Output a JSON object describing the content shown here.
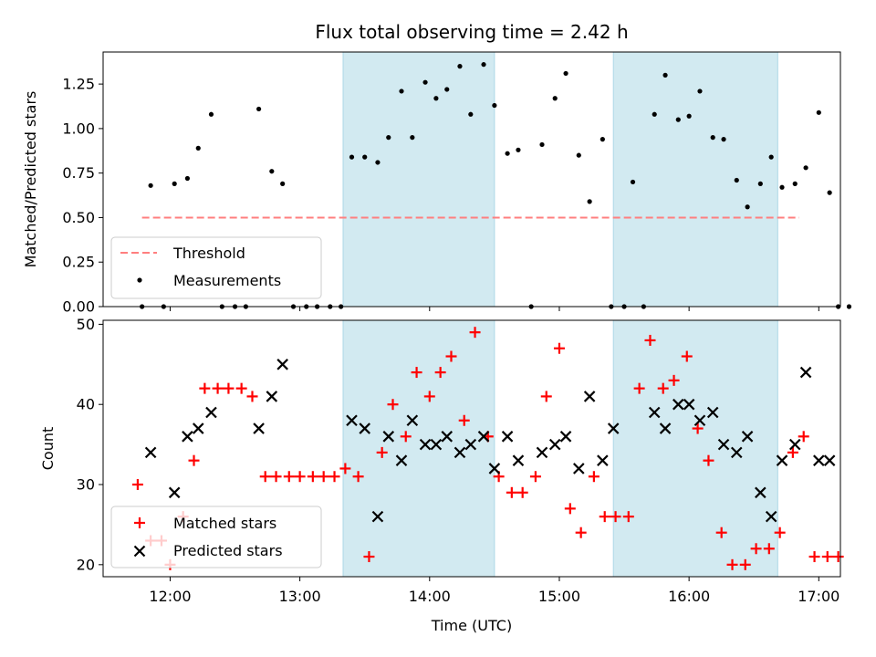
{
  "chart_data": [
    {
      "type": "scatter",
      "title": "Flux total observing time = 2.42 h",
      "ylabel": "Matched/Predicted stars",
      "ylim": [
        0,
        1.43
      ],
      "yticks": [
        "0.00",
        "0.25",
        "0.50",
        "0.75",
        "1.00",
        "1.25"
      ],
      "ytick_values": [
        0,
        0.25,
        0.5,
        0.75,
        1.0,
        1.25
      ],
      "threshold": {
        "name": "Threshold",
        "value": 0.5,
        "x_range": [
          "11:47",
          "16:51"
        ],
        "color": "#ff7f7f"
      },
      "shaded_regions": [
        [
          "13:20",
          "14:30"
        ],
        [
          "15:25",
          "16:41"
        ]
      ],
      "shade_color": "#add8e6",
      "legend": {
        "position": "lower-left",
        "entries": [
          "Threshold",
          "Measurements"
        ]
      },
      "series": [
        {
          "name": "Measurements",
          "marker": "dot",
          "color": "#000000",
          "points": [
            [
              "11:47",
              0.0
            ],
            [
              "11:51",
              0.68
            ],
            [
              "11:57",
              0.0
            ],
            [
              "12:02",
              0.69
            ],
            [
              "12:08",
              0.72
            ],
            [
              "12:13",
              0.89
            ],
            [
              "12:19",
              1.08
            ],
            [
              "12:24",
              0.0
            ],
            [
              "12:30",
              0.0
            ],
            [
              "12:35",
              0.0
            ],
            [
              "12:41",
              1.11
            ],
            [
              "12:47",
              0.76
            ],
            [
              "12:52",
              0.69
            ],
            [
              "12:57",
              0.0
            ],
            [
              "13:03",
              0.0
            ],
            [
              "13:08",
              0.0
            ],
            [
              "13:14",
              0.0
            ],
            [
              "13:19",
              0.0
            ],
            [
              "13:24",
              0.84
            ],
            [
              "13:30",
              0.84
            ],
            [
              "13:36",
              0.81
            ],
            [
              "13:41",
              0.95
            ],
            [
              "13:47",
              1.21
            ],
            [
              "13:52",
              0.95
            ],
            [
              "13:58",
              1.26
            ],
            [
              "14:03",
              1.17
            ],
            [
              "14:08",
              1.22
            ],
            [
              "14:14",
              1.35
            ],
            [
              "14:19",
              1.08
            ],
            [
              "14:25",
              1.36
            ],
            [
              "14:30",
              1.13
            ],
            [
              "14:36",
              0.86
            ],
            [
              "14:41",
              0.88
            ],
            [
              "14:47",
              0.0
            ],
            [
              "14:52",
              0.91
            ],
            [
              "14:58",
              1.17
            ],
            [
              "15:03",
              1.31
            ],
            [
              "15:09",
              0.85
            ],
            [
              "15:14",
              0.59
            ],
            [
              "15:20",
              0.94
            ],
            [
              "15:24",
              0.0
            ],
            [
              "15:30",
              0.0
            ],
            [
              "15:34",
              0.7
            ],
            [
              "15:39",
              0.0
            ],
            [
              "15:44",
              1.08
            ],
            [
              "15:49",
              1.3
            ],
            [
              "15:55",
              1.05
            ],
            [
              "16:00",
              1.07
            ],
            [
              "16:05",
              1.21
            ],
            [
              "16:11",
              0.95
            ],
            [
              "16:16",
              0.94
            ],
            [
              "16:22",
              0.71
            ],
            [
              "16:27",
              0.56
            ],
            [
              "16:33",
              0.69
            ],
            [
              "16:38",
              0.84
            ],
            [
              "16:43",
              0.67
            ],
            [
              "16:49",
              0.69
            ],
            [
              "16:54",
              0.78
            ],
            [
              "17:00",
              1.09
            ],
            [
              "17:05",
              0.64
            ],
            [
              "17:09",
              0.0
            ],
            [
              "17:14",
              0.0
            ]
          ]
        }
      ]
    },
    {
      "type": "scatter",
      "xlabel": "Time (UTC)",
      "ylabel": "Count",
      "xlim": [
        "11:29",
        "17:10"
      ],
      "ylim": [
        18.5,
        50.5
      ],
      "xticks": [
        "12:00",
        "13:00",
        "14:00",
        "15:00",
        "16:00",
        "17:00"
      ],
      "yticks": [
        "20",
        "30",
        "40",
        "50"
      ],
      "ytick_values": [
        20,
        30,
        40,
        50
      ],
      "shaded_regions": [
        [
          "13:20",
          "14:30"
        ],
        [
          "15:25",
          "16:41"
        ]
      ],
      "shade_color": "#add8e6",
      "legend": {
        "position": "lower-left",
        "entries": [
          "Matched stars",
          "Predicted stars"
        ]
      },
      "series": [
        {
          "name": "Matched stars",
          "marker": "plus",
          "color": "#ff0000",
          "points": [
            [
              "11:45",
              30
            ],
            [
              "11:51",
              23
            ],
            [
              "11:56",
              23
            ],
            [
              "12:00",
              20
            ],
            [
              "12:06",
              26
            ],
            [
              "12:11",
              33
            ],
            [
              "12:16",
              42
            ],
            [
              "12:22",
              42
            ],
            [
              "12:27",
              42
            ],
            [
              "12:33",
              42
            ],
            [
              "12:38",
              41
            ],
            [
              "12:44",
              31
            ],
            [
              "12:49",
              31
            ],
            [
              "12:55",
              31
            ],
            [
              "13:00",
              31
            ],
            [
              "13:06",
              31
            ],
            [
              "13:11",
              31
            ],
            [
              "13:16",
              31
            ],
            [
              "13:21",
              32
            ],
            [
              "13:27",
              31
            ],
            [
              "13:32",
              21
            ],
            [
              "13:38",
              34
            ],
            [
              "13:43",
              40
            ],
            [
              "13:49",
              36
            ],
            [
              "13:54",
              44
            ],
            [
              "14:00",
              41
            ],
            [
              "14:05",
              44
            ],
            [
              "14:10",
              46
            ],
            [
              "14:16",
              38
            ],
            [
              "14:21",
              49
            ],
            [
              "14:27",
              36
            ],
            [
              "14:32",
              31
            ],
            [
              "14:38",
              29
            ],
            [
              "14:43",
              29
            ],
            [
              "14:49",
              31
            ],
            [
              "14:54",
              41
            ],
            [
              "15:00",
              47
            ],
            [
              "15:05",
              27
            ],
            [
              "15:10",
              24
            ],
            [
              "15:16",
              31
            ],
            [
              "15:21",
              26
            ],
            [
              "15:26",
              26
            ],
            [
              "15:32",
              26
            ],
            [
              "15:37",
              42
            ],
            [
              "15:42",
              48
            ],
            [
              "15:48",
              42
            ],
            [
              "15:53",
              43
            ],
            [
              "15:59",
              46
            ],
            [
              "16:04",
              37
            ],
            [
              "16:09",
              33
            ],
            [
              "16:15",
              24
            ],
            [
              "16:20",
              20
            ],
            [
              "16:26",
              20
            ],
            [
              "16:31",
              22
            ],
            [
              "16:37",
              22
            ],
            [
              "16:42",
              24
            ],
            [
              "16:48",
              34
            ],
            [
              "16:53",
              36
            ],
            [
              "16:58",
              21
            ],
            [
              "17:04",
              21
            ],
            [
              "17:09",
              21
            ]
          ]
        },
        {
          "name": "Predicted stars",
          "marker": "x",
          "color": "#000000",
          "points": [
            [
              "11:51",
              34
            ],
            [
              "12:02",
              29
            ],
            [
              "12:08",
              36
            ],
            [
              "12:13",
              37
            ],
            [
              "12:19",
              39
            ],
            [
              "12:41",
              37
            ],
            [
              "12:47",
              41
            ],
            [
              "12:52",
              45
            ],
            [
              "13:24",
              38
            ],
            [
              "13:30",
              37
            ],
            [
              "13:36",
              26
            ],
            [
              "13:41",
              36
            ],
            [
              "13:47",
              33
            ],
            [
              "13:52",
              38
            ],
            [
              "13:58",
              35
            ],
            [
              "14:03",
              35
            ],
            [
              "14:08",
              36
            ],
            [
              "14:14",
              34
            ],
            [
              "14:19",
              35
            ],
            [
              "14:25",
              36
            ],
            [
              "14:30",
              32
            ],
            [
              "14:36",
              36
            ],
            [
              "14:41",
              33
            ],
            [
              "14:52",
              34
            ],
            [
              "14:58",
              35
            ],
            [
              "15:03",
              36
            ],
            [
              "15:09",
              32
            ],
            [
              "15:14",
              41
            ],
            [
              "15:20",
              33
            ],
            [
              "15:25",
              37
            ],
            [
              "15:44",
              39
            ],
            [
              "15:49",
              37
            ],
            [
              "15:55",
              40
            ],
            [
              "16:00",
              40
            ],
            [
              "16:05",
              38
            ],
            [
              "16:11",
              39
            ],
            [
              "16:16",
              35
            ],
            [
              "16:22",
              34
            ],
            [
              "16:27",
              36
            ],
            [
              "16:33",
              29
            ],
            [
              "16:38",
              26
            ],
            [
              "16:43",
              33
            ],
            [
              "16:49",
              35
            ],
            [
              "16:54",
              44
            ],
            [
              "17:00",
              33
            ],
            [
              "17:05",
              33
            ]
          ]
        }
      ]
    }
  ]
}
